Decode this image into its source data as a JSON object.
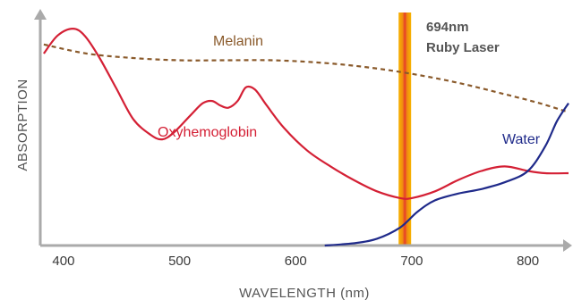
{
  "chart_data": {
    "type": "line",
    "title": "",
    "xlabel": "WAVELENGTH (nm)",
    "ylabel": "ABSORPTION",
    "xlim": [
      380,
      835
    ],
    "ylim": [
      0,
      100
    ],
    "x_ticks": [
      "400",
      "500",
      "600",
      "700",
      "800"
    ],
    "x_tick_values": [
      400,
      500,
      600,
      700,
      800
    ],
    "grid": false,
    "y_tick_labels_shown": false,
    "colors": {
      "axis": "#aaaaaa",
      "melanin": "#8a5a2b",
      "oxyhemoglobin": "#d42035",
      "water": "#1f2a8a",
      "laser_outer": "#f2a900",
      "laser_core": "#e8402a"
    },
    "series": [
      {
        "name": "Melanin",
        "style": "dashed",
        "label_text": "Melanin",
        "x": [
          383,
          420,
          460,
          500,
          540,
          580,
          620,
          660,
          700,
          740,
          780,
          810,
          835
        ],
        "y": [
          89,
          85,
          83,
          82,
          82,
          82,
          81,
          79,
          76,
          72,
          67,
          63,
          59
        ]
      },
      {
        "name": "Oxyhemoglobin",
        "style": "solid",
        "label_text": "Oxyhemoglobin",
        "x": [
          383,
          395,
          408,
          418,
          430,
          445,
          460,
          475,
          485,
          495,
          510,
          520,
          528,
          535,
          542,
          550,
          557,
          565,
          575,
          590,
          610,
          630,
          650,
          670,
          690,
          700,
          720,
          740,
          760,
          780,
          800,
          815,
          835
        ],
        "y": [
          85,
          93,
          96,
          93,
          84,
          70,
          56,
          49,
          47,
          50,
          58,
          63,
          64,
          62,
          61,
          64,
          70,
          69,
          62,
          52,
          42,
          35,
          29,
          24,
          21,
          21,
          24,
          29,
          33,
          35,
          33,
          32,
          32
        ]
      },
      {
        "name": "Water",
        "style": "solid",
        "label_text": "Water",
        "x": [
          625,
          650,
          670,
          690,
          705,
          720,
          740,
          760,
          780,
          800,
          815,
          825,
          835
        ],
        "y": [
          0,
          1,
          3,
          8,
          15,
          20,
          23,
          25,
          28,
          33,
          44,
          55,
          63
        ]
      }
    ],
    "annotations": [
      {
        "type": "vertical-band",
        "x": 694,
        "lines": [
          "694nm",
          "Ruby Laser"
        ]
      }
    ]
  }
}
